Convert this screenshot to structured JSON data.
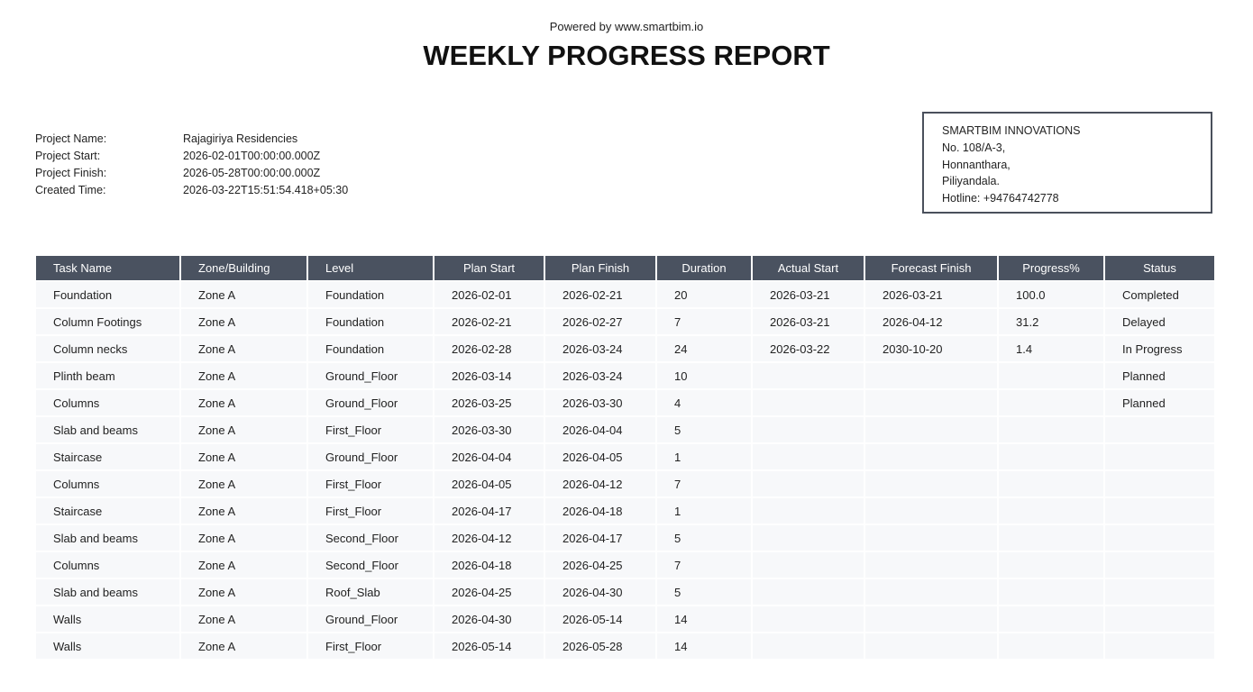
{
  "header": {
    "powered_by": "Powered by www.smartbim.io",
    "title": "WEEKLY PROGRESS REPORT"
  },
  "project": [
    {
      "label": "Project Name:",
      "value": "Rajagiriya Residencies"
    },
    {
      "label": "Project Start:",
      "value": "2026-02-01T00:00:00.000Z"
    },
    {
      "label": "Project Finish:",
      "value": "2026-05-28T00:00:00.000Z"
    },
    {
      "label": "Created Time:",
      "value": "2026-03-22T15:51:54.418+05:30"
    }
  ],
  "company": {
    "lines": [
      "SMARTBIM INNOVATIONS",
      "No. 108/A-3,",
      "Honnanthara,",
      "Piliyandala.",
      "Hotline: +94764742778"
    ]
  },
  "table": {
    "headers": [
      "Task Name",
      "Zone/Building",
      "Level",
      "Plan Start",
      "Plan Finish",
      "Duration",
      "Actual Start",
      "Forecast Finish",
      "Progress%",
      "Status"
    ],
    "rows": [
      [
        "Foundation",
        "Zone A",
        "Foundation",
        "2026-02-01",
        "2026-02-21",
        "20",
        "2026-03-21",
        "2026-03-21",
        "100.0",
        "Completed"
      ],
      [
        "Column Footings",
        "Zone A",
        "Foundation",
        "2026-02-21",
        "2026-02-27",
        "7",
        "2026-03-21",
        "2026-04-12",
        "31.2",
        "Delayed"
      ],
      [
        "Column necks",
        "Zone A",
        "Foundation",
        "2026-02-28",
        "2026-03-24",
        "24",
        "2026-03-22",
        "2030-10-20",
        "1.4",
        "In Progress"
      ],
      [
        "Plinth beam",
        "Zone A",
        "Ground_Floor",
        "2026-03-14",
        "2026-03-24",
        "10",
        null,
        null,
        null,
        "Planned"
      ],
      [
        "Columns",
        "Zone A",
        "Ground_Floor",
        "2026-03-25",
        "2026-03-30",
        "4",
        null,
        null,
        null,
        "Planned"
      ],
      [
        "Slab and beams",
        "Zone A",
        "First_Floor",
        "2026-03-30",
        "2026-04-04",
        "5",
        null,
        null,
        null,
        null
      ],
      [
        "Staircase",
        "Zone A",
        "Ground_Floor",
        "2026-04-04",
        "2026-04-05",
        "1",
        null,
        null,
        null,
        null
      ],
      [
        "Columns",
        "Zone A",
        "First_Floor",
        "2026-04-05",
        "2026-04-12",
        "7",
        null,
        null,
        null,
        null
      ],
      [
        "Staircase",
        "Zone A",
        "First_Floor",
        "2026-04-17",
        "2026-04-18",
        "1",
        null,
        null,
        null,
        null
      ],
      [
        "Slab and beams",
        "Zone A",
        "Second_Floor",
        "2026-04-12",
        "2026-04-17",
        "5",
        null,
        null,
        null,
        null
      ],
      [
        "Columns",
        "Zone A",
        "Second_Floor",
        "2026-04-18",
        "2026-04-25",
        "7",
        null,
        null,
        null,
        null
      ],
      [
        "Slab and beams",
        "Zone A",
        "Roof_Slab",
        "2026-04-25",
        "2026-04-30",
        "5",
        null,
        null,
        null,
        null
      ],
      [
        "Walls",
        "Zone A",
        "Ground_Floor",
        "2026-04-30",
        "2026-05-14",
        "14",
        null,
        null,
        null,
        null
      ],
      [
        "Walls",
        "Zone A",
        "First_Floor",
        "2026-05-14",
        "2026-05-28",
        "14",
        null,
        null,
        null,
        null
      ]
    ]
  }
}
